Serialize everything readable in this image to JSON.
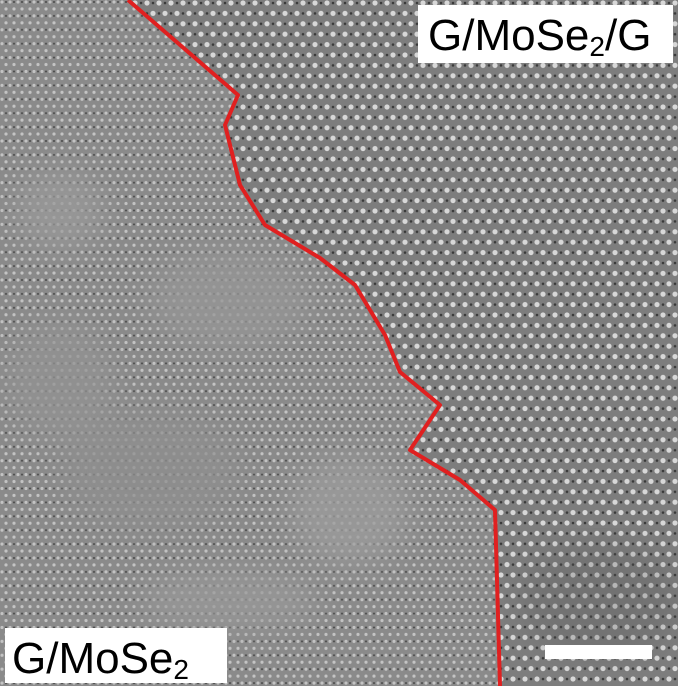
{
  "labels": {
    "top_right": {
      "main": "G/MoSe",
      "subscript": "2",
      "suffix": "/G"
    },
    "bottom_left": {
      "main": "G/MoSe",
      "subscript": "2"
    }
  }
}
